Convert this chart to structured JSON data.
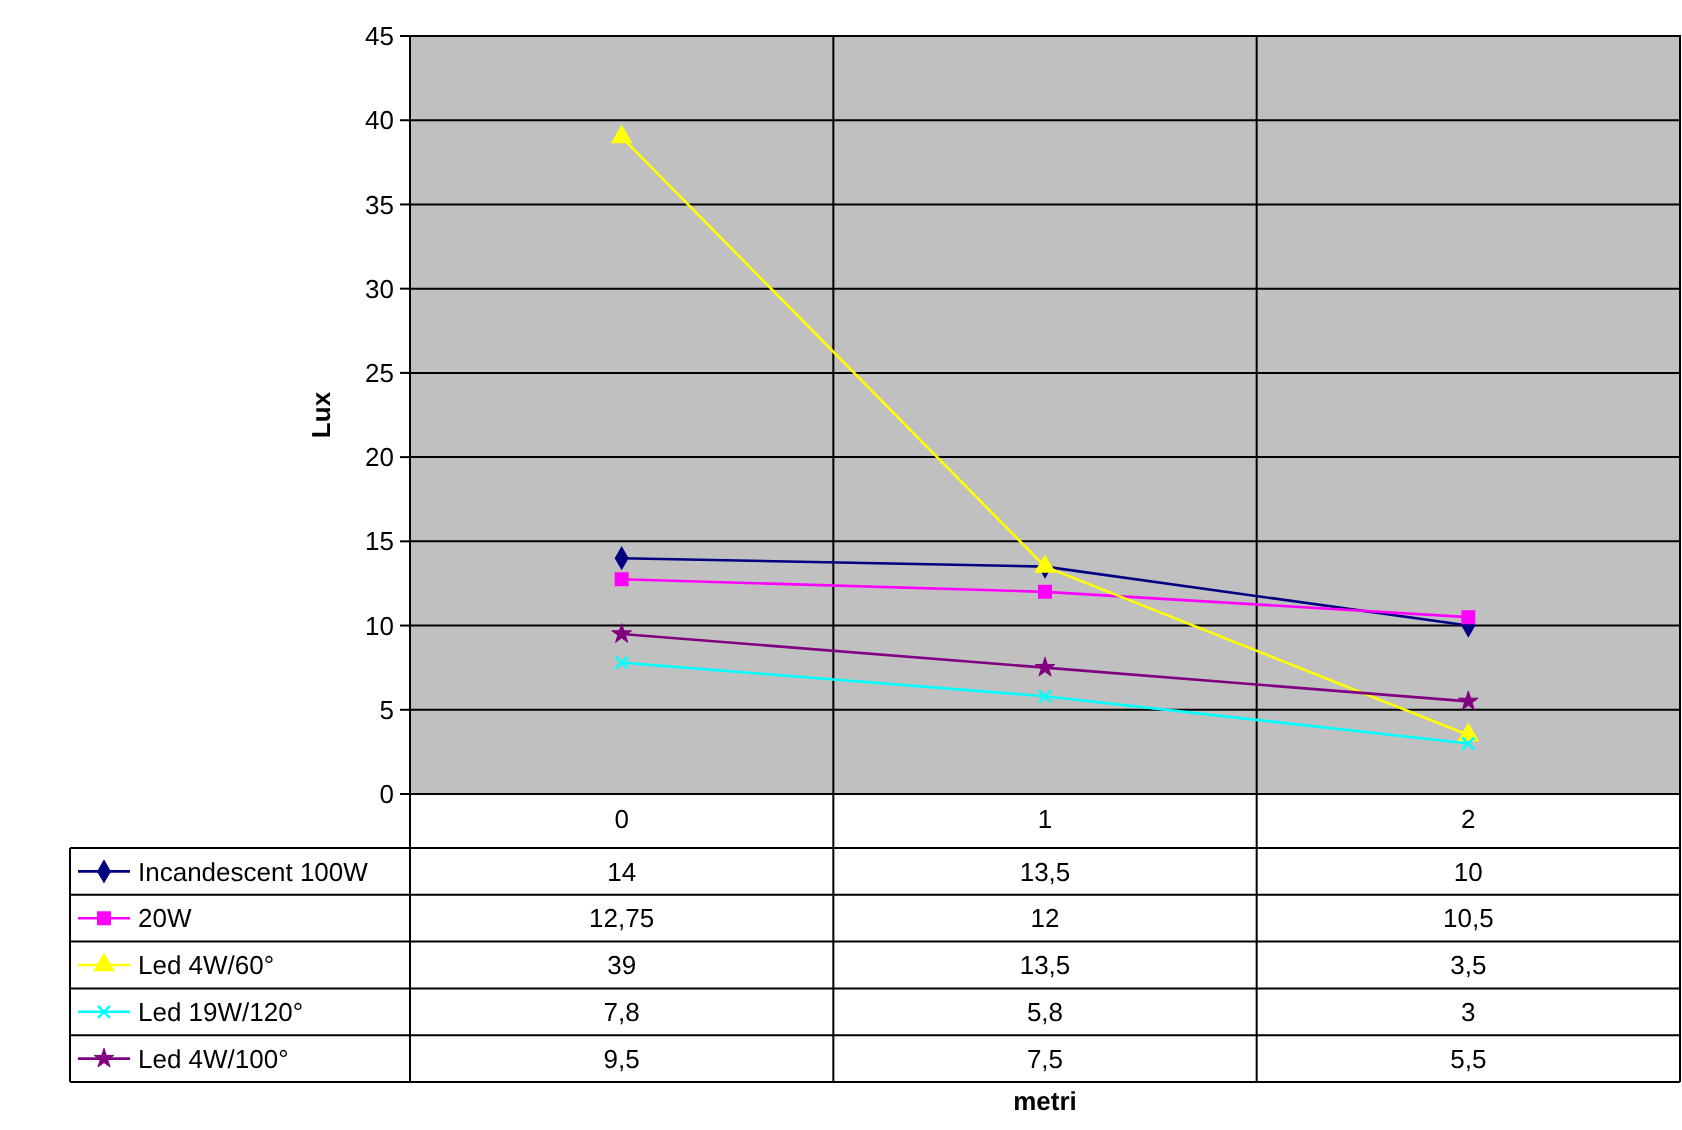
{
  "chart_data": {
    "type": "line",
    "annotations": [
      "metri"
    ],
    "ylabel": "Lux",
    "categories": [
      "0",
      "1",
      "2"
    ],
    "ylim": [
      0,
      45
    ],
    "yticks": [
      0,
      5,
      10,
      15,
      20,
      25,
      30,
      35,
      40,
      45
    ],
    "grid": true,
    "legend": "bottom left",
    "series": [
      {
        "name": "Incandescent 100W",
        "color": "#000080",
        "marker": "diamond",
        "values": [
          14,
          13.5,
          10
        ],
        "value_labels": [
          "14",
          "13,5",
          "10"
        ]
      },
      {
        "name": "20W",
        "color": "#ff00ff",
        "marker": "square",
        "values": [
          12.75,
          12,
          10.5
        ],
        "value_labels": [
          "12,75",
          "12",
          "10,5"
        ]
      },
      {
        "name": "Led 4W/60°",
        "color": "#ffff00",
        "marker": "triangle",
        "values": [
          39,
          13.5,
          3.5
        ],
        "value_labels": [
          "39",
          "13,5",
          "3,5"
        ]
      },
      {
        "name": "Led 19W/120°",
        "color": "#00ffff",
        "marker": "cross",
        "values": [
          7.8,
          5.8,
          3
        ],
        "value_labels": [
          "7,8",
          "5,8",
          "3"
        ]
      },
      {
        "name": "Led 4W/100°",
        "color": "#800080",
        "marker": "star",
        "values": [
          9.5,
          7.5,
          5.5
        ],
        "value_labels": [
          "9,5",
          "7,5",
          "5,5"
        ]
      }
    ]
  }
}
